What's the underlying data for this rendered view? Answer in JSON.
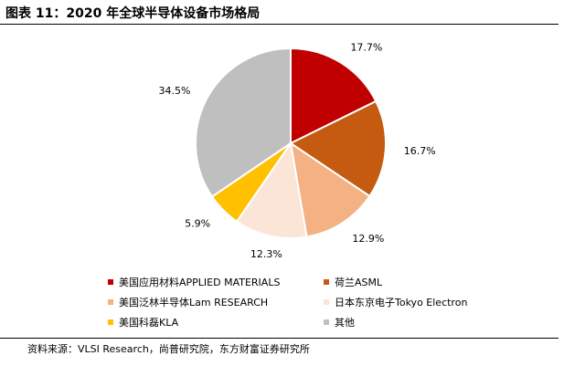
{
  "title": "图表 11：2020 年全球半导体设备市场格局",
  "source": "资料来源：VLSI Research，尚普研究院，东方财富证券研究所",
  "chart_data": {
    "type": "pie",
    "labels": [
      "美国应用材料APPLIED MATERIALS",
      "荷兰ASML",
      "美国泛林半导体Lam RESEARCH",
      "日本东京电子Tokyo Electron",
      "美国科磊KLA",
      "其他"
    ],
    "values": [
      17.7,
      16.7,
      12.9,
      12.3,
      5.9,
      34.5
    ],
    "value_labels": [
      "17.7%",
      "16.7%",
      "12.9%",
      "12.3%",
      "5.9%",
      "34.5%"
    ],
    "colors": [
      "#c00000",
      "#c55a11",
      "#f4b183",
      "#fbe5d6",
      "#ffc000",
      "#bfbfbf"
    ],
    "legend_position": "bottom"
  }
}
